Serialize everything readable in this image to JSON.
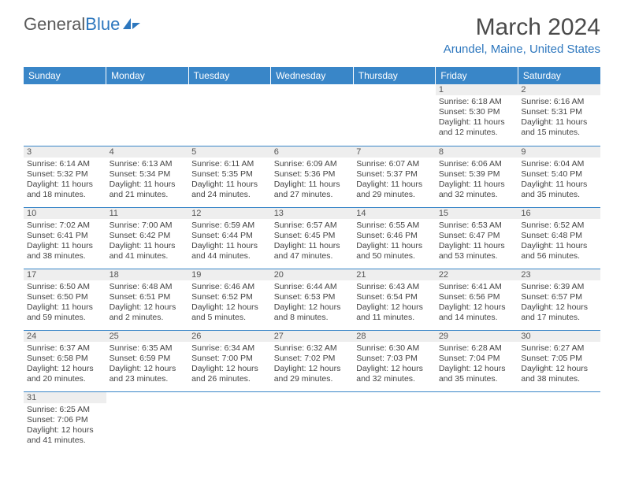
{
  "logo": {
    "text1": "General",
    "text2": "Blue"
  },
  "title": {
    "month": "March 2024",
    "location": "Arundel, Maine, United States"
  },
  "colors": {
    "header_bg": "#3986c8",
    "header_text": "#ffffff",
    "accent": "#2d77be",
    "daynum_bg": "#eeeeee",
    "border": "#3986c8",
    "text": "#444444"
  },
  "weekdays": [
    "Sunday",
    "Monday",
    "Tuesday",
    "Wednesday",
    "Thursday",
    "Friday",
    "Saturday"
  ],
  "weeks": [
    [
      null,
      null,
      null,
      null,
      null,
      {
        "n": "1",
        "sr": "Sunrise: 6:18 AM",
        "ss": "Sunset: 5:30 PM",
        "d1": "Daylight: 11 hours",
        "d2": "and 12 minutes."
      },
      {
        "n": "2",
        "sr": "Sunrise: 6:16 AM",
        "ss": "Sunset: 5:31 PM",
        "d1": "Daylight: 11 hours",
        "d2": "and 15 minutes."
      }
    ],
    [
      {
        "n": "3",
        "sr": "Sunrise: 6:14 AM",
        "ss": "Sunset: 5:32 PM",
        "d1": "Daylight: 11 hours",
        "d2": "and 18 minutes."
      },
      {
        "n": "4",
        "sr": "Sunrise: 6:13 AM",
        "ss": "Sunset: 5:34 PM",
        "d1": "Daylight: 11 hours",
        "d2": "and 21 minutes."
      },
      {
        "n": "5",
        "sr": "Sunrise: 6:11 AM",
        "ss": "Sunset: 5:35 PM",
        "d1": "Daylight: 11 hours",
        "d2": "and 24 minutes."
      },
      {
        "n": "6",
        "sr": "Sunrise: 6:09 AM",
        "ss": "Sunset: 5:36 PM",
        "d1": "Daylight: 11 hours",
        "d2": "and 27 minutes."
      },
      {
        "n": "7",
        "sr": "Sunrise: 6:07 AM",
        "ss": "Sunset: 5:37 PM",
        "d1": "Daylight: 11 hours",
        "d2": "and 29 minutes."
      },
      {
        "n": "8",
        "sr": "Sunrise: 6:06 AM",
        "ss": "Sunset: 5:39 PM",
        "d1": "Daylight: 11 hours",
        "d2": "and 32 minutes."
      },
      {
        "n": "9",
        "sr": "Sunrise: 6:04 AM",
        "ss": "Sunset: 5:40 PM",
        "d1": "Daylight: 11 hours",
        "d2": "and 35 minutes."
      }
    ],
    [
      {
        "n": "10",
        "sr": "Sunrise: 7:02 AM",
        "ss": "Sunset: 6:41 PM",
        "d1": "Daylight: 11 hours",
        "d2": "and 38 minutes."
      },
      {
        "n": "11",
        "sr": "Sunrise: 7:00 AM",
        "ss": "Sunset: 6:42 PM",
        "d1": "Daylight: 11 hours",
        "d2": "and 41 minutes."
      },
      {
        "n": "12",
        "sr": "Sunrise: 6:59 AM",
        "ss": "Sunset: 6:44 PM",
        "d1": "Daylight: 11 hours",
        "d2": "and 44 minutes."
      },
      {
        "n": "13",
        "sr": "Sunrise: 6:57 AM",
        "ss": "Sunset: 6:45 PM",
        "d1": "Daylight: 11 hours",
        "d2": "and 47 minutes."
      },
      {
        "n": "14",
        "sr": "Sunrise: 6:55 AM",
        "ss": "Sunset: 6:46 PM",
        "d1": "Daylight: 11 hours",
        "d2": "and 50 minutes."
      },
      {
        "n": "15",
        "sr": "Sunrise: 6:53 AM",
        "ss": "Sunset: 6:47 PM",
        "d1": "Daylight: 11 hours",
        "d2": "and 53 minutes."
      },
      {
        "n": "16",
        "sr": "Sunrise: 6:52 AM",
        "ss": "Sunset: 6:48 PM",
        "d1": "Daylight: 11 hours",
        "d2": "and 56 minutes."
      }
    ],
    [
      {
        "n": "17",
        "sr": "Sunrise: 6:50 AM",
        "ss": "Sunset: 6:50 PM",
        "d1": "Daylight: 11 hours",
        "d2": "and 59 minutes."
      },
      {
        "n": "18",
        "sr": "Sunrise: 6:48 AM",
        "ss": "Sunset: 6:51 PM",
        "d1": "Daylight: 12 hours",
        "d2": "and 2 minutes."
      },
      {
        "n": "19",
        "sr": "Sunrise: 6:46 AM",
        "ss": "Sunset: 6:52 PM",
        "d1": "Daylight: 12 hours",
        "d2": "and 5 minutes."
      },
      {
        "n": "20",
        "sr": "Sunrise: 6:44 AM",
        "ss": "Sunset: 6:53 PM",
        "d1": "Daylight: 12 hours",
        "d2": "and 8 minutes."
      },
      {
        "n": "21",
        "sr": "Sunrise: 6:43 AM",
        "ss": "Sunset: 6:54 PM",
        "d1": "Daylight: 12 hours",
        "d2": "and 11 minutes."
      },
      {
        "n": "22",
        "sr": "Sunrise: 6:41 AM",
        "ss": "Sunset: 6:56 PM",
        "d1": "Daylight: 12 hours",
        "d2": "and 14 minutes."
      },
      {
        "n": "23",
        "sr": "Sunrise: 6:39 AM",
        "ss": "Sunset: 6:57 PM",
        "d1": "Daylight: 12 hours",
        "d2": "and 17 minutes."
      }
    ],
    [
      {
        "n": "24",
        "sr": "Sunrise: 6:37 AM",
        "ss": "Sunset: 6:58 PM",
        "d1": "Daylight: 12 hours",
        "d2": "and 20 minutes."
      },
      {
        "n": "25",
        "sr": "Sunrise: 6:35 AM",
        "ss": "Sunset: 6:59 PM",
        "d1": "Daylight: 12 hours",
        "d2": "and 23 minutes."
      },
      {
        "n": "26",
        "sr": "Sunrise: 6:34 AM",
        "ss": "Sunset: 7:00 PM",
        "d1": "Daylight: 12 hours",
        "d2": "and 26 minutes."
      },
      {
        "n": "27",
        "sr": "Sunrise: 6:32 AM",
        "ss": "Sunset: 7:02 PM",
        "d1": "Daylight: 12 hours",
        "d2": "and 29 minutes."
      },
      {
        "n": "28",
        "sr": "Sunrise: 6:30 AM",
        "ss": "Sunset: 7:03 PM",
        "d1": "Daylight: 12 hours",
        "d2": "and 32 minutes."
      },
      {
        "n": "29",
        "sr": "Sunrise: 6:28 AM",
        "ss": "Sunset: 7:04 PM",
        "d1": "Daylight: 12 hours",
        "d2": "and 35 minutes."
      },
      {
        "n": "30",
        "sr": "Sunrise: 6:27 AM",
        "ss": "Sunset: 7:05 PM",
        "d1": "Daylight: 12 hours",
        "d2": "and 38 minutes."
      }
    ],
    [
      {
        "n": "31",
        "sr": "Sunrise: 6:25 AM",
        "ss": "Sunset: 7:06 PM",
        "d1": "Daylight: 12 hours",
        "d2": "and 41 minutes."
      },
      null,
      null,
      null,
      null,
      null,
      null
    ]
  ]
}
